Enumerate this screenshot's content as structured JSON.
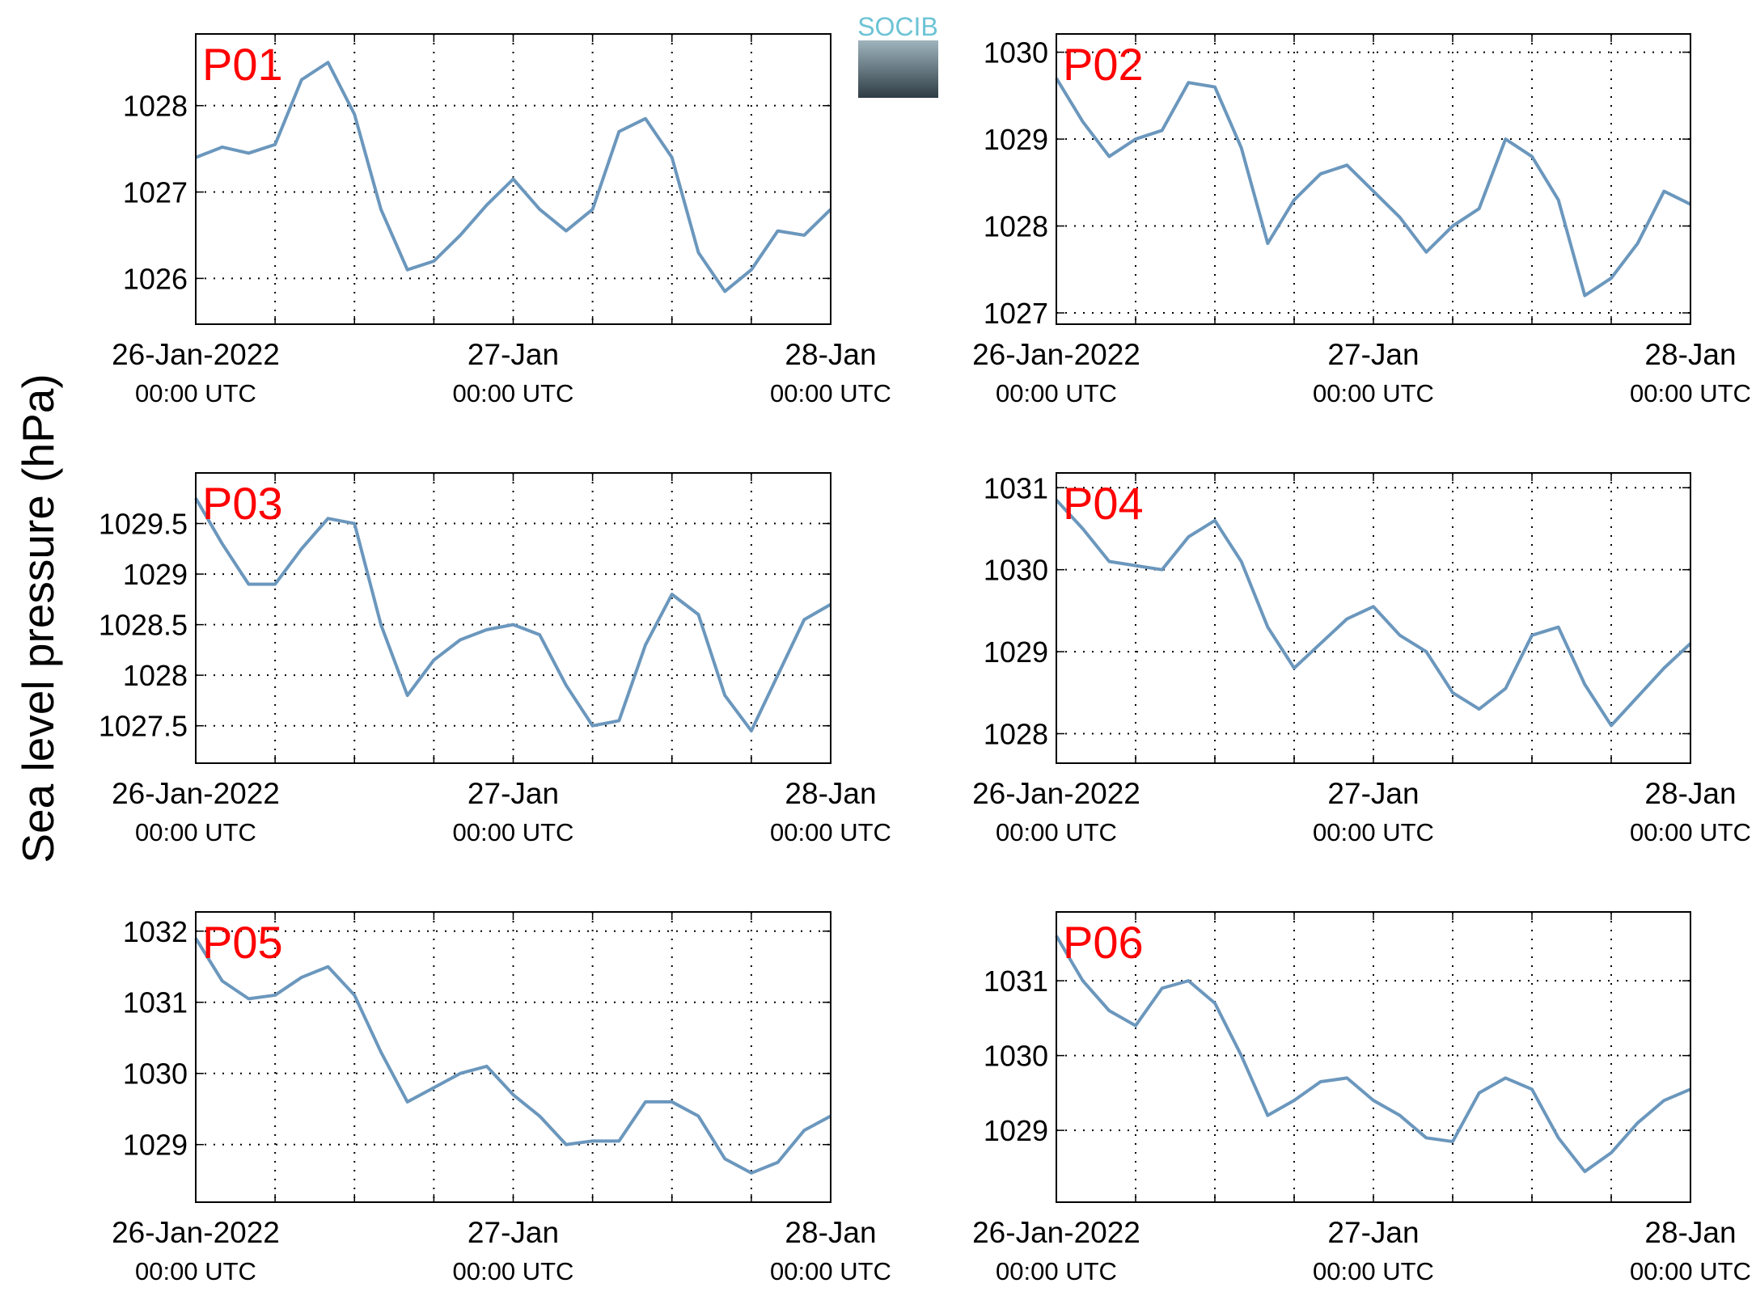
{
  "ylabel": "Sea level pressure (hPa)",
  "logo": "SOCIB",
  "chart_data": [
    {
      "type": "line",
      "title": "P01",
      "color": "#6b97bd",
      "x": [
        0,
        2,
        4,
        6,
        8,
        10,
        12,
        14,
        16,
        18,
        20,
        22,
        24,
        26,
        28,
        30,
        32,
        34,
        36,
        38,
        40,
        42,
        44,
        46,
        48
      ],
      "values": [
        1027.4,
        1027.52,
        1027.45,
        1027.55,
        1028.3,
        1028.5,
        1027.9,
        1026.8,
        1026.1,
        1026.2,
        1026.5,
        1026.85,
        1027.15,
        1026.8,
        1026.55,
        1026.8,
        1027.7,
        1027.85,
        1027.4,
        1026.3,
        1025.85,
        1026.1,
        1026.55,
        1026.5,
        1026.8
      ],
      "xlim": [
        0,
        48
      ],
      "xticks": [
        {
          "value": 0,
          "label": [
            "26-Jan-2022",
            "00:00 UTC"
          ]
        },
        {
          "value": 6,
          "label": null
        },
        {
          "value": 12,
          "label": null
        },
        {
          "value": 18,
          "label": null
        },
        {
          "value": 24,
          "label": [
            "27-Jan",
            "00:00 UTC"
          ]
        },
        {
          "value": 30,
          "label": null
        },
        {
          "value": 36,
          "label": null
        },
        {
          "value": 42,
          "label": null
        },
        {
          "value": 48,
          "label": [
            "28-Jan",
            "00:00 UTC"
          ]
        }
      ],
      "ylim": [
        1025.47,
        1028.83
      ],
      "yticks": [
        1026,
        1027,
        1028
      ],
      "grid": true
    },
    {
      "type": "line",
      "title": "P02",
      "color": "#6b97bd",
      "x": [
        0,
        2,
        4,
        6,
        8,
        10,
        12,
        14,
        16,
        18,
        20,
        22,
        24,
        26,
        28,
        30,
        32,
        34,
        36,
        38,
        40,
        42,
        44,
        46,
        48
      ],
      "values": [
        1029.7,
        1029.2,
        1028.8,
        1029.0,
        1029.1,
        1029.65,
        1029.6,
        1028.9,
        1027.8,
        1028.3,
        1028.6,
        1028.7,
        1028.4,
        1028.1,
        1027.7,
        1028.0,
        1028.2,
        1029.0,
        1028.8,
        1028.3,
        1027.2,
        1027.4,
        1027.8,
        1028.4,
        1028.25
      ],
      "xlim": [
        0,
        48
      ],
      "xticks": [
        {
          "value": 0,
          "label": [
            "26-Jan-2022",
            "00:00 UTC"
          ]
        },
        {
          "value": 6,
          "label": null
        },
        {
          "value": 12,
          "label": null
        },
        {
          "value": 18,
          "label": null
        },
        {
          "value": 24,
          "label": [
            "27-Jan",
            "00:00 UTC"
          ]
        },
        {
          "value": 30,
          "label": null
        },
        {
          "value": 36,
          "label": null
        },
        {
          "value": 42,
          "label": null
        },
        {
          "value": 48,
          "label": [
            "28-Jan",
            "00:00 UTC"
          ]
        }
      ],
      "ylim": [
        1026.87,
        1030.21
      ],
      "yticks": [
        1027,
        1028,
        1029,
        1030
      ],
      "grid": true
    },
    {
      "type": "line",
      "title": "P03",
      "color": "#6b97bd",
      "x": [
        0,
        2,
        4,
        6,
        8,
        10,
        12,
        14,
        16,
        18,
        20,
        22,
        24,
        26,
        28,
        30,
        32,
        34,
        36,
        38,
        40,
        42,
        44,
        46,
        48
      ],
      "values": [
        1029.75,
        1029.3,
        1028.9,
        1028.9,
        1029.25,
        1029.55,
        1029.5,
        1028.5,
        1027.8,
        1028.15,
        1028.35,
        1028.45,
        1028.5,
        1028.4,
        1027.9,
        1027.5,
        1027.55,
        1028.3,
        1028.8,
        1028.6,
        1027.8,
        1027.45,
        1028.0,
        1028.55,
        1028.7
      ],
      "xlim": [
        0,
        48
      ],
      "xticks": [
        {
          "value": 0,
          "label": [
            "26-Jan-2022",
            "00:00 UTC"
          ]
        },
        {
          "value": 6,
          "label": null
        },
        {
          "value": 12,
          "label": null
        },
        {
          "value": 18,
          "label": null
        },
        {
          "value": 24,
          "label": [
            "27-Jan",
            "00:00 UTC"
          ]
        },
        {
          "value": 30,
          "label": null
        },
        {
          "value": 36,
          "label": null
        },
        {
          "value": 42,
          "label": null
        },
        {
          "value": 48,
          "label": [
            "28-Jan",
            "00:00 UTC"
          ]
        }
      ],
      "ylim": [
        1027.13,
        1030.0
      ],
      "yticks": [
        1027.5,
        1028,
        1028.5,
        1029,
        1029.5
      ],
      "grid": true
    },
    {
      "type": "line",
      "title": "P04",
      "color": "#6b97bd",
      "x": [
        0,
        2,
        4,
        6,
        8,
        10,
        12,
        14,
        16,
        18,
        20,
        22,
        24,
        26,
        28,
        30,
        32,
        34,
        36,
        38,
        40,
        42,
        44,
        46,
        48
      ],
      "values": [
        1030.85,
        1030.5,
        1030.1,
        1030.05,
        1030.0,
        1030.4,
        1030.6,
        1030.1,
        1029.3,
        1028.8,
        1029.1,
        1029.4,
        1029.55,
        1029.2,
        1029.0,
        1028.5,
        1028.3,
        1028.55,
        1029.2,
        1029.3,
        1028.6,
        1028.1,
        1028.45,
        1028.8,
        1029.1
      ],
      "xlim": [
        0,
        48
      ],
      "xticks": [
        {
          "value": 0,
          "label": [
            "26-Jan-2022",
            "00:00 UTC"
          ]
        },
        {
          "value": 6,
          "label": null
        },
        {
          "value": 12,
          "label": null
        },
        {
          "value": 18,
          "label": null
        },
        {
          "value": 24,
          "label": [
            "27-Jan",
            "00:00 UTC"
          ]
        },
        {
          "value": 30,
          "label": null
        },
        {
          "value": 36,
          "label": null
        },
        {
          "value": 42,
          "label": null
        },
        {
          "value": 48,
          "label": [
            "28-Jan",
            "00:00 UTC"
          ]
        }
      ],
      "ylim": [
        1027.64,
        1031.18
      ],
      "yticks": [
        1028,
        1029,
        1030,
        1031
      ],
      "grid": true
    },
    {
      "type": "line",
      "title": "P05",
      "color": "#6b97bd",
      "x": [
        0,
        2,
        4,
        6,
        8,
        10,
        12,
        14,
        16,
        18,
        20,
        22,
        24,
        26,
        28,
        30,
        32,
        34,
        36,
        38,
        40,
        42,
        44,
        46,
        48
      ],
      "values": [
        1031.9,
        1031.3,
        1031.05,
        1031.1,
        1031.35,
        1031.5,
        1031.1,
        1030.3,
        1029.6,
        1029.8,
        1030.0,
        1030.1,
        1029.7,
        1029.4,
        1029.0,
        1029.05,
        1029.05,
        1029.6,
        1029.6,
        1029.4,
        1028.8,
        1028.6,
        1028.75,
        1029.2,
        1029.4
      ],
      "xlim": [
        0,
        48
      ],
      "xticks": [
        {
          "value": 0,
          "label": [
            "26-Jan-2022",
            "00:00 UTC"
          ]
        },
        {
          "value": 6,
          "label": null
        },
        {
          "value": 12,
          "label": null
        },
        {
          "value": 18,
          "label": null
        },
        {
          "value": 24,
          "label": [
            "27-Jan",
            "00:00 UTC"
          ]
        },
        {
          "value": 30,
          "label": null
        },
        {
          "value": 36,
          "label": null
        },
        {
          "value": 42,
          "label": null
        },
        {
          "value": 48,
          "label": [
            "28-Jan",
            "00:00 UTC"
          ]
        }
      ],
      "ylim": [
        1028.19,
        1032.27
      ],
      "yticks": [
        1029,
        1030,
        1031,
        1032
      ],
      "grid": true
    },
    {
      "type": "line",
      "title": "P06",
      "color": "#6b97bd",
      "x": [
        0,
        2,
        4,
        6,
        8,
        10,
        12,
        14,
        16,
        18,
        20,
        22,
        24,
        26,
        28,
        30,
        32,
        34,
        36,
        38,
        40,
        42,
        44,
        46,
        48
      ],
      "values": [
        1031.6,
        1031.0,
        1030.6,
        1030.4,
        1030.9,
        1031.0,
        1030.7,
        1030.0,
        1029.2,
        1029.4,
        1029.65,
        1029.7,
        1029.4,
        1029.2,
        1028.9,
        1028.85,
        1029.5,
        1029.7,
        1029.55,
        1028.9,
        1028.45,
        1028.7,
        1029.1,
        1029.4,
        1029.55
      ],
      "xlim": [
        0,
        48
      ],
      "xticks": [
        {
          "value": 0,
          "label": [
            "26-Jan-2022",
            "00:00 UTC"
          ]
        },
        {
          "value": 6,
          "label": null
        },
        {
          "value": 12,
          "label": null
        },
        {
          "value": 18,
          "label": null
        },
        {
          "value": 24,
          "label": [
            "27-Jan",
            "00:00 UTC"
          ]
        },
        {
          "value": 30,
          "label": null
        },
        {
          "value": 36,
          "label": null
        },
        {
          "value": 42,
          "label": null
        },
        {
          "value": 48,
          "label": [
            "28-Jan",
            "00:00 UTC"
          ]
        }
      ],
      "ylim": [
        1028.04,
        1031.92
      ],
      "yticks": [
        1029,
        1030,
        1031
      ],
      "grid": true
    }
  ]
}
